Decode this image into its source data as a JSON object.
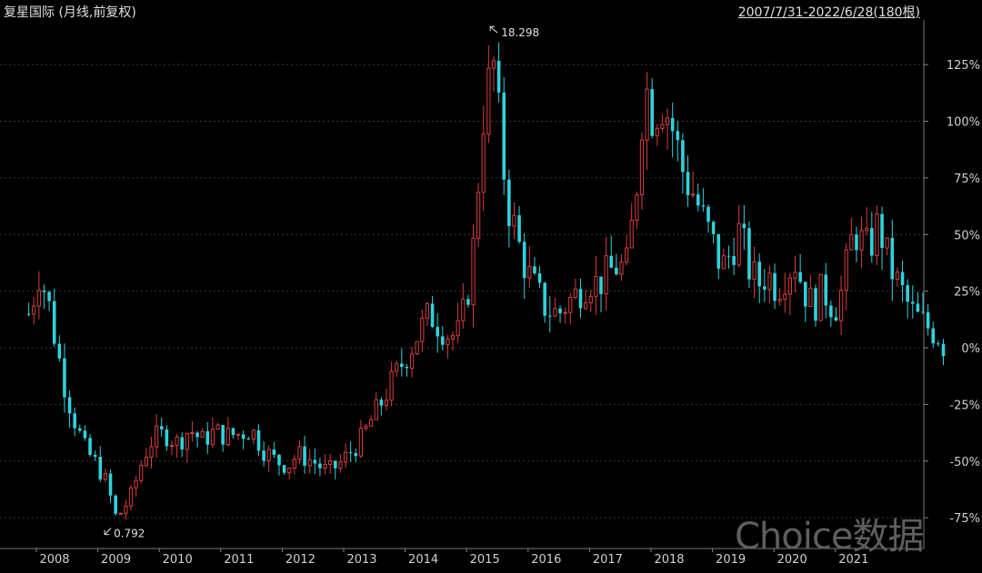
{
  "header": {
    "title": "复星国际 (月线,前复权)",
    "range": "2007/7/31-2022/6/28(180根)"
  },
  "watermark": "Choice数据",
  "colors": {
    "background": "#000000",
    "up": "#d93d3d",
    "down": "#2ed3dc",
    "grid": "#3a3a3a",
    "axis_text": "#d0d0d0"
  },
  "chart_data": {
    "type": "candlestick",
    "title": "复星国际 (月线,前复权)",
    "period": "2007/7/31-2022/6/28(180根)",
    "y_axis": {
      "unit": "percent change",
      "ticks": [
        -75,
        -50,
        -25,
        0,
        25,
        50,
        75,
        100,
        125
      ],
      "tick_labels": [
        "-75%",
        "-50%",
        "-25%",
        "0%",
        "25%",
        "50%",
        "75%",
        "100%",
        "125%"
      ],
      "range": [
        -83,
        145
      ]
    },
    "x_axis": {
      "tick_labels": [
        "2008",
        "2009",
        "2010",
        "2011",
        "2012",
        "2013",
        "2014",
        "2015",
        "2016",
        "2017",
        "2018",
        "2019",
        "2020",
        "2021"
      ]
    },
    "annotations": [
      {
        "text": "18.298",
        "kind": "max",
        "year": 2015,
        "pct": 143
      },
      {
        "text": "0.792",
        "kind": "min",
        "year": 2008.8,
        "pct": -82
      }
    ],
    "anchor_points_pct": [
      [
        2007.6,
        15
      ],
      [
        2007.75,
        33
      ],
      [
        2007.9,
        20
      ],
      [
        2008.0,
        5
      ],
      [
        2008.15,
        -15
      ],
      [
        2008.3,
        -30
      ],
      [
        2008.5,
        -45
      ],
      [
        2008.7,
        -52
      ],
      [
        2008.85,
        -60
      ],
      [
        2009.0,
        -75
      ],
      [
        2009.1,
        -72
      ],
      [
        2009.25,
        -65
      ],
      [
        2009.45,
        -48
      ],
      [
        2009.6,
        -40
      ],
      [
        2009.8,
        -38
      ],
      [
        2010.0,
        -42
      ],
      [
        2010.2,
        -36
      ],
      [
        2010.4,
        -41
      ],
      [
        2010.6,
        -37
      ],
      [
        2010.8,
        -39
      ],
      [
        2011.0,
        -38
      ],
      [
        2011.2,
        -36
      ],
      [
        2011.4,
        -45
      ],
      [
        2011.6,
        -50
      ],
      [
        2011.8,
        -52
      ],
      [
        2011.95,
        -47
      ],
      [
        2012.2,
        -50
      ],
      [
        2012.45,
        -55
      ],
      [
        2012.65,
        -51
      ],
      [
        2012.85,
        -45
      ],
      [
        2013.0,
        -40
      ],
      [
        2013.15,
        -32
      ],
      [
        2013.3,
        -25
      ],
      [
        2013.55,
        -12
      ],
      [
        2013.8,
        0
      ],
      [
        2013.95,
        8
      ],
      [
        2014.1,
        15
      ],
      [
        2014.25,
        10
      ],
      [
        2014.4,
        6
      ],
      [
        2014.55,
        5
      ],
      [
        2014.7,
        20
      ],
      [
        2014.8,
        40
      ],
      [
        2014.9,
        75
      ],
      [
        2015.0,
        110
      ],
      [
        2015.15,
        125
      ],
      [
        2015.3,
        80
      ],
      [
        2015.4,
        60
      ],
      [
        2015.5,
        52
      ],
      [
        2015.6,
        40
      ],
      [
        2015.75,
        30
      ],
      [
        2015.9,
        22
      ],
      [
        2016.0,
        17
      ],
      [
        2016.2,
        15
      ],
      [
        2016.35,
        20
      ],
      [
        2016.5,
        24
      ],
      [
        2016.7,
        30
      ],
      [
        2016.85,
        28
      ],
      [
        2017.0,
        33
      ],
      [
        2017.15,
        36
      ],
      [
        2017.3,
        35
      ],
      [
        2017.45,
        65
      ],
      [
        2017.6,
        118
      ],
      [
        2017.75,
        100
      ],
      [
        2017.85,
        110
      ],
      [
        2018.0,
        102
      ],
      [
        2018.1,
        92
      ],
      [
        2018.25,
        75
      ],
      [
        2018.4,
        68
      ],
      [
        2018.55,
        57
      ],
      [
        2018.7,
        47
      ],
      [
        2018.85,
        35
      ],
      [
        2019.0,
        42
      ],
      [
        2019.15,
        52
      ],
      [
        2019.3,
        35
      ],
      [
        2019.45,
        28
      ],
      [
        2019.6,
        33
      ],
      [
        2019.75,
        26
      ],
      [
        2019.9,
        33
      ],
      [
        2020.05,
        38
      ],
      [
        2020.2,
        25
      ],
      [
        2020.35,
        18
      ],
      [
        2020.5,
        26
      ],
      [
        2020.6,
        20
      ],
      [
        2020.75,
        18
      ],
      [
        2020.9,
        38
      ],
      [
        2021.0,
        52
      ],
      [
        2021.1,
        48
      ],
      [
        2021.25,
        43
      ],
      [
        2021.4,
        55
      ],
      [
        2021.5,
        45
      ],
      [
        2021.6,
        35
      ],
      [
        2021.75,
        27
      ],
      [
        2021.9,
        18
      ],
      [
        2022.0,
        14
      ],
      [
        2022.1,
        12
      ],
      [
        2022.25,
        8
      ],
      [
        2022.4,
        5
      ],
      [
        2022.45,
        1
      ]
    ]
  }
}
